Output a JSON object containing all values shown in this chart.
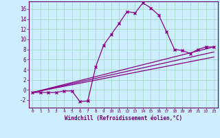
{
  "xlabel": "Windchill (Refroidissement éolien,°C)",
  "background_color": "#cceeff",
  "grid_color": "#aaddcc",
  "line_color": "#880088",
  "xlim": [
    -0.5,
    23.5
  ],
  "ylim": [
    -3.5,
    17.5
  ],
  "xticks": [
    0,
    1,
    2,
    3,
    4,
    5,
    6,
    7,
    8,
    9,
    10,
    11,
    12,
    13,
    14,
    15,
    16,
    17,
    18,
    19,
    20,
    21,
    22,
    23
  ],
  "yticks": [
    -2,
    0,
    2,
    4,
    6,
    8,
    10,
    12,
    14,
    16
  ],
  "series_main": {
    "x": [
      0,
      1,
      2,
      3,
      4,
      5,
      6,
      7,
      8,
      9,
      10,
      11,
      12,
      13,
      14,
      15,
      16,
      17,
      18,
      19,
      20,
      21,
      22,
      23
    ],
    "y": [
      -0.5,
      -0.5,
      -0.5,
      -0.5,
      -0.2,
      -0.2,
      -2.3,
      -2.2,
      4.5,
      8.8,
      11.0,
      13.2,
      15.5,
      15.2,
      17.2,
      16.2,
      14.8,
      11.5,
      8.0,
      7.8,
      7.2,
      8.0,
      8.5,
      8.5
    ]
  },
  "series_lines": [
    {
      "x": [
        0,
        23
      ],
      "y": [
        -0.5,
        8.5
      ]
    },
    {
      "x": [
        0,
        23
      ],
      "y": [
        -0.5,
        7.5
      ]
    },
    {
      "x": [
        0,
        23
      ],
      "y": [
        -0.5,
        6.5
      ]
    }
  ]
}
